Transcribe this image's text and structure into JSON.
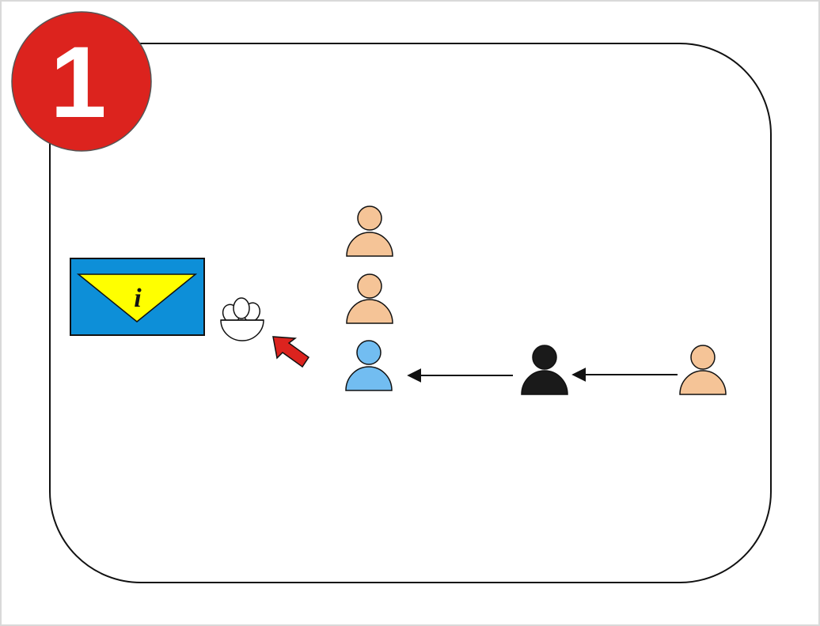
{
  "step": {
    "number": "1",
    "badge_color": "#dc231e"
  },
  "info_sign": {
    "letter": "i",
    "panel_color": "#0d8fd8",
    "triangle_color": "#ffff00"
  },
  "colors": {
    "person_waiting": "#f5c497",
    "person_served": "#72bdf1",
    "person_black": "#1a1a1a",
    "hand_arrow": "#dc231e",
    "stroke": "#222222"
  },
  "icons": {
    "bowl": "bowl-icon",
    "arrow": "red-arrow-icon",
    "person": "person-icon"
  }
}
